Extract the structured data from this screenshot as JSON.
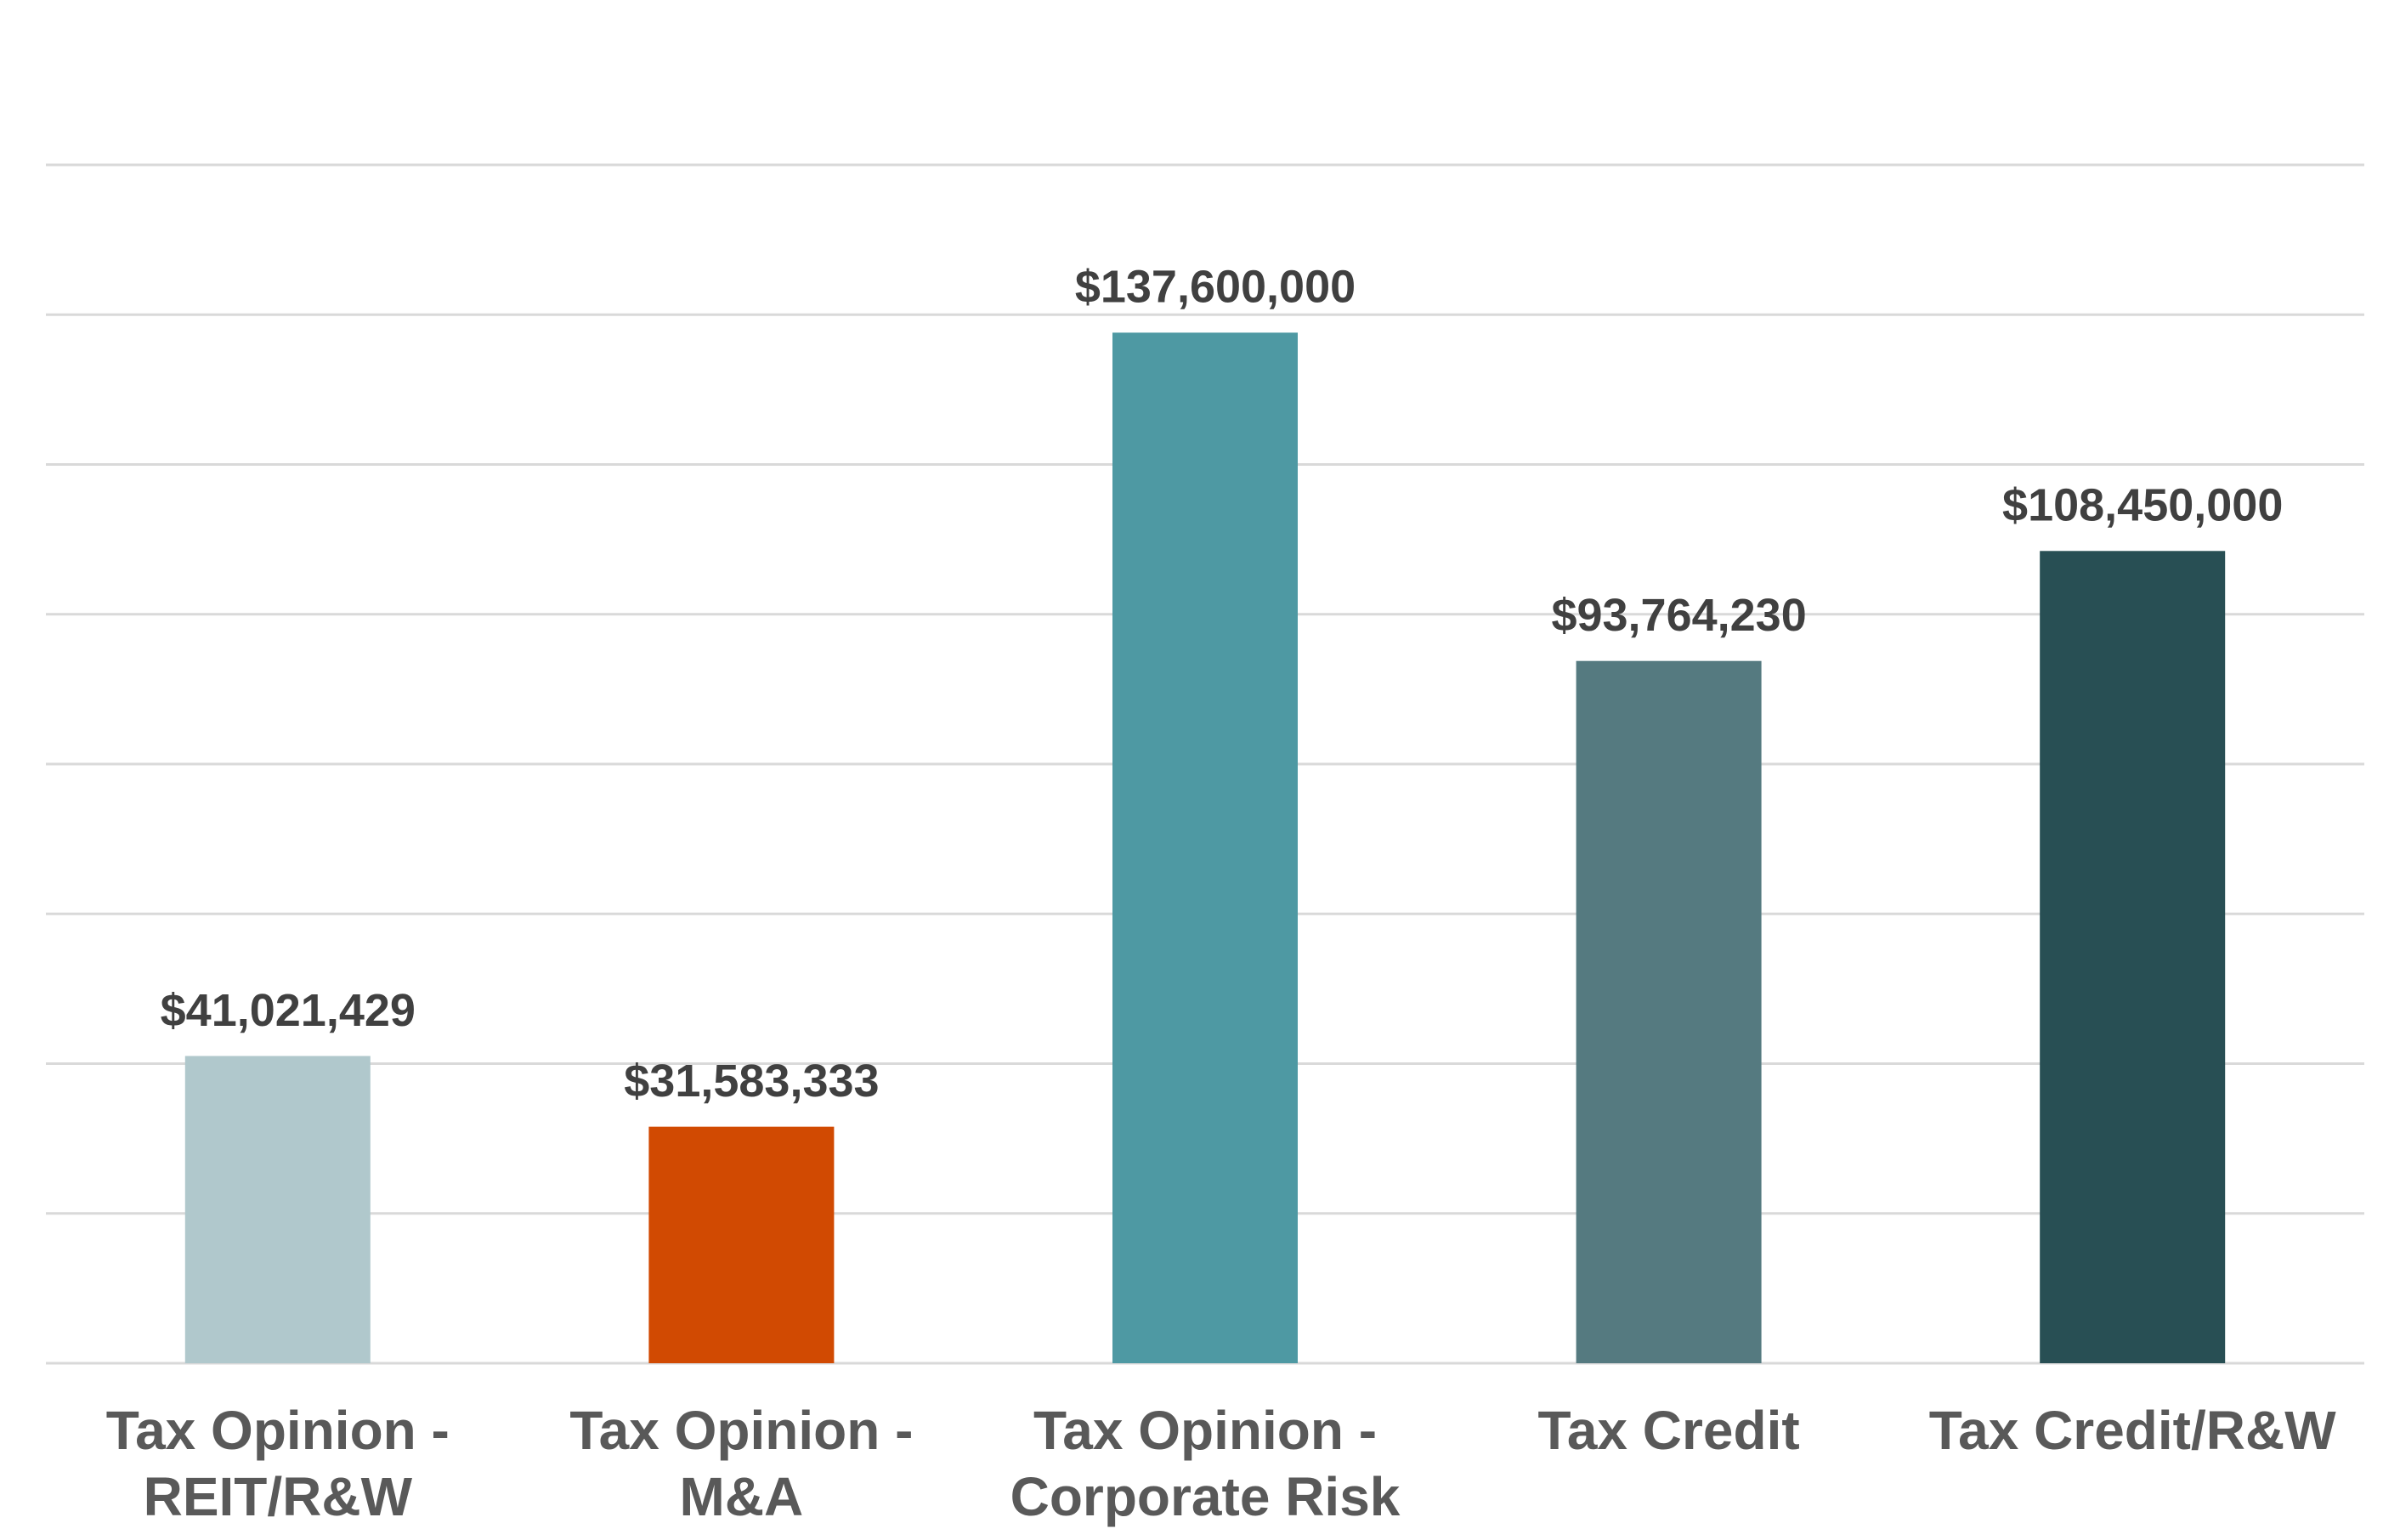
{
  "chart_data": {
    "type": "bar",
    "categories": [
      [
        "Tax Opinion -",
        "REIT/R&W"
      ],
      [
        "Tax Opinion -",
        "M&A"
      ],
      [
        "Tax Opinion -",
        "Corporate Risk"
      ],
      [
        "Tax Credit"
      ],
      [
        "Tax Credit/R&W"
      ]
    ],
    "values": [
      41021429,
      31583333,
      137600000,
      93764230,
      108450000
    ],
    "value_labels": [
      "$41,021,429",
      "$31,583,333",
      "$137,600,000",
      "$93,764,230",
      "$108,450,000"
    ],
    "colors": [
      "#b0c8cc",
      "#d14a02",
      "#4e99a3",
      "#557a80",
      "#284f54"
    ],
    "ylim": [
      0,
      160000000
    ],
    "yticks": [
      0,
      20000000,
      40000000,
      60000000,
      80000000,
      100000000,
      120000000,
      140000000,
      160000000
    ],
    "grid": true
  }
}
